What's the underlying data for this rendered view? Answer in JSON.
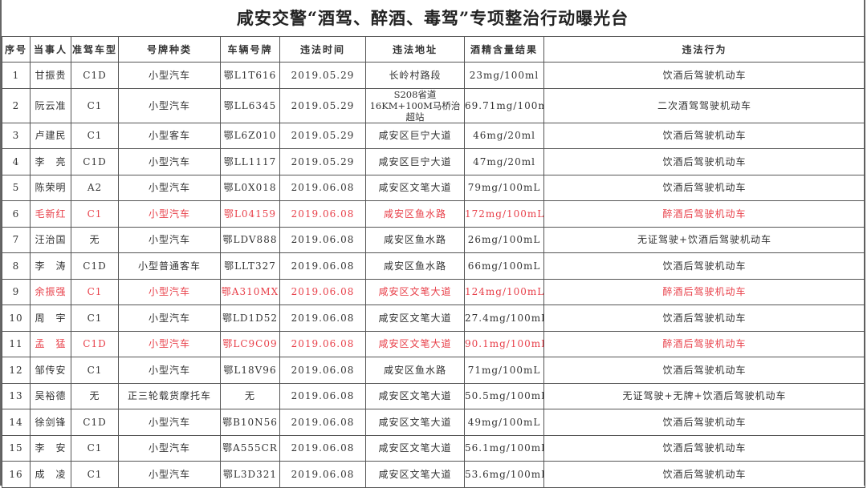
{
  "title": "咸安交警“酒驾、醉酒、毒驾”专项整治行动曝光台",
  "highlight_color": "#e8404a",
  "columns": [
    "序号",
    "当事人",
    "准驾车型",
    "号牌种类",
    "车辆号牌",
    "违法时间",
    "违法地址",
    "酒精含量结果",
    "违法行为"
  ],
  "rows": [
    {
      "no": "1",
      "name": "甘振贵",
      "license": "C1D",
      "plate_type": "小型汽车",
      "plate": "鄂L1T616",
      "time": "2019.05.29",
      "place": "长岭村路段",
      "alcohol": "23mg/100ml",
      "act": "饮酒后驾驶机动车",
      "red": false
    },
    {
      "no": "2",
      "name": "阮云准",
      "license": "C1",
      "plate_type": "小型汽车",
      "plate": "鄂LL6345",
      "time": "2019.05.29",
      "place": "S208省道16KM+100M马桥治超站",
      "alcohol": "69.71mg/100ml",
      "act": "二次酒驾驾驶机动车",
      "red": false
    },
    {
      "no": "3",
      "name": "卢建民",
      "license": "C1",
      "plate_type": "小型客车",
      "plate": "鄂L6Z010",
      "time": "2019.05.29",
      "place": "咸安区巨宁大道",
      "alcohol": "46mg/20ml",
      "act": "饮酒后驾驶机动车",
      "red": false
    },
    {
      "no": "4",
      "name": "李　亮",
      "license": "C1D",
      "plate_type": "小型汽车",
      "plate": "鄂LL1117",
      "time": "2019.05.29",
      "place": "咸安区巨宁大道",
      "alcohol": "47mg/20ml",
      "act": "饮酒后驾驶机动车",
      "red": false
    },
    {
      "no": "5",
      "name": "陈荣明",
      "license": "A2",
      "plate_type": "小型汽车",
      "plate": "鄂L0X018",
      "time": "2019.06.08",
      "place": "咸安区文笔大道",
      "alcohol": "79mg/100mL",
      "act": "饮酒后驾驶机动车",
      "red": false
    },
    {
      "no": "6",
      "name": "毛新红",
      "license": "C1",
      "plate_type": "小型汽车",
      "plate": "鄂L04159",
      "time": "2019.06.08",
      "place": "咸安区鱼水路",
      "alcohol": "172mg/100mL",
      "act": "醉酒后驾驶机动车",
      "red": true
    },
    {
      "no": "7",
      "name": "汪治国",
      "license": "无",
      "plate_type": "小型汽车",
      "plate": "鄂LDV888",
      "time": "2019.06.08",
      "place": "咸安区鱼水路",
      "alcohol": "26mg/100mL",
      "act": "无证驾驶+饮酒后驾驶机动车",
      "red": false
    },
    {
      "no": "8",
      "name": "李　涛",
      "license": "C1D",
      "plate_type": "小型普通客车",
      "plate": "鄂LLT327",
      "time": "2019.06.08",
      "place": "咸安区鱼水路",
      "alcohol": "66mg/100mL",
      "act": "饮酒后驾驶机动车",
      "red": false
    },
    {
      "no": "9",
      "name": "余振强",
      "license": "C1",
      "plate_type": "小型汽车",
      "plate": "鄂A310MX",
      "time": "2019.06.08",
      "place": "咸安区文笔大道",
      "alcohol": "124mg/100mL",
      "act": "醉酒后驾驶机动车",
      "red": true
    },
    {
      "no": "10",
      "name": "周　宇",
      "license": "C1",
      "plate_type": "小型汽车",
      "plate": "鄂LD1D52",
      "time": "2019.06.08",
      "place": "咸安区文笔大道",
      "alcohol": "27.4mg/100mL",
      "act": "饮酒后驾驶机动车",
      "red": false
    },
    {
      "no": "11",
      "name": "孟　猛",
      "license": "C1D",
      "plate_type": "小型汽车",
      "plate": "鄂LC9C09",
      "time": "2019.06.08",
      "place": "咸安区文笔大道",
      "alcohol": "90.1mg/100mL",
      "act": "醉酒后驾驶机动车",
      "red": true
    },
    {
      "no": "12",
      "name": "邹传安",
      "license": "C1",
      "plate_type": "小型汽车",
      "plate": "鄂L18V96",
      "time": "2019.06.08",
      "place": "咸安区鱼水路",
      "alcohol": "71mg/100mL",
      "act": "饮酒后驾驶机动车",
      "red": false
    },
    {
      "no": "13",
      "name": "吴裕德",
      "license": "无",
      "plate_type": "正三轮载货摩托车",
      "plate": "无",
      "time": "2019.06.08",
      "place": "咸安区文笔大道",
      "alcohol": "50.5mg/100mL",
      "act": "无证驾驶+无牌+饮酒后驾驶机动车",
      "red": false
    },
    {
      "no": "14",
      "name": "徐剑锋",
      "license": "C1D",
      "plate_type": "小型汽车",
      "plate": "鄂B10N56",
      "time": "2019.06.08",
      "place": "咸安区文笔大道",
      "alcohol": "49mg/100mL",
      "act": "饮酒后驾驶机动车",
      "red": false
    },
    {
      "no": "15",
      "name": "李　安",
      "license": "C1",
      "plate_type": "小型汽车",
      "plate": "鄂A555CR",
      "time": "2019.06.08",
      "place": "咸安区文笔大道",
      "alcohol": "56.1mg/100mL",
      "act": "饮酒后驾驶机动车",
      "red": false
    },
    {
      "no": "16",
      "name": "成　凌",
      "license": "C1",
      "plate_type": "小型汽车",
      "plate": "鄂L3D321",
      "time": "2019.06.08",
      "place": "咸安区文笔大道",
      "alcohol": "53.6mg/100mL",
      "act": "饮酒后驾驶机动车",
      "red": false
    }
  ]
}
